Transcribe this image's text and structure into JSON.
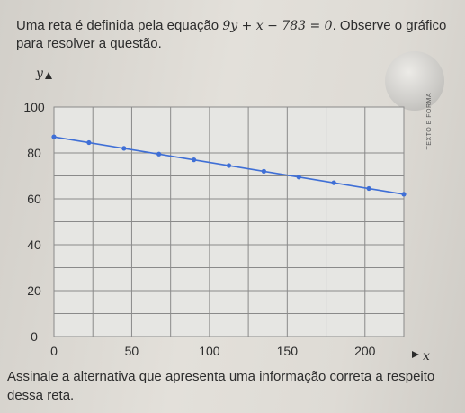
{
  "question": {
    "intro": "Uma reta é definida pela equação",
    "equation": "9y + x − 783 = 0",
    "outro": ". Observe o gráfico para resolver a questão.",
    "prompt": "Assinale a alternativa que apresenta uma informação correta a respeito dessa reta."
  },
  "watermark": {
    "logo_text": "TEXTO E FORMA"
  },
  "colors": {
    "line": "#3f6fd6",
    "grid": "#8a8a8a",
    "panel": "#e6e6e3"
  },
  "chart_data": {
    "type": "line",
    "title": "",
    "xlabel": "x",
    "ylabel": "y",
    "xlim": [
      0,
      225
    ],
    "ylim": [
      0,
      100
    ],
    "xticks": [
      0,
      50,
      100,
      150,
      200
    ],
    "yticks": [
      0,
      20,
      40,
      60,
      80,
      100
    ],
    "grid": true,
    "series": [
      {
        "x": [
          0,
          22.5,
          45,
          67.5,
          90,
          112.5,
          135,
          157.5,
          180,
          202.5,
          225
        ],
        "y": [
          87,
          84.5,
          82,
          79.5,
          77,
          74.5,
          72,
          69.5,
          67,
          64.5,
          62
        ]
      }
    ]
  }
}
